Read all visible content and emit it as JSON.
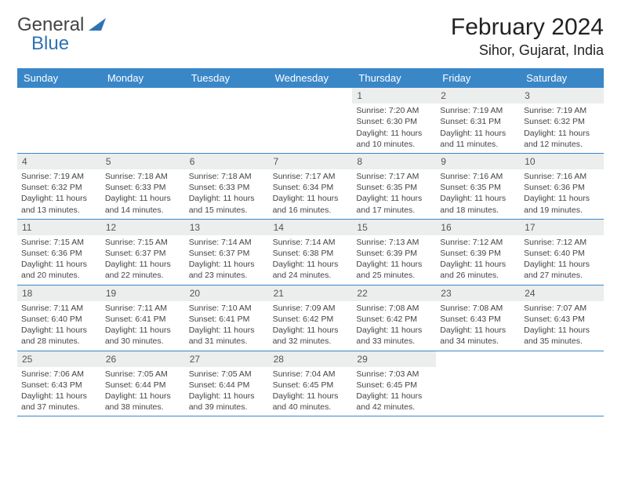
{
  "logo": {
    "text1": "General",
    "text2": "Blue",
    "color1": "#5a5a5a",
    "color2": "#2f72b3",
    "triangle_color": "#2f72b3"
  },
  "title": "February 2024",
  "location": "Sihor, Gujarat, India",
  "colors": {
    "header_bg": "#3a87c8",
    "header_text": "#ffffff",
    "daynum_bg": "#eceded",
    "daynum_text": "#555555",
    "cell_text": "#444444",
    "rule": "#3a87c8"
  },
  "day_names": [
    "Sunday",
    "Monday",
    "Tuesday",
    "Wednesday",
    "Thursday",
    "Friday",
    "Saturday"
  ],
  "weeks": [
    [
      {
        "n": "",
        "sr": "",
        "ss": "",
        "dl": ""
      },
      {
        "n": "",
        "sr": "",
        "ss": "",
        "dl": ""
      },
      {
        "n": "",
        "sr": "",
        "ss": "",
        "dl": ""
      },
      {
        "n": "",
        "sr": "",
        "ss": "",
        "dl": ""
      },
      {
        "n": "1",
        "sr": "Sunrise: 7:20 AM",
        "ss": "Sunset: 6:30 PM",
        "dl": "Daylight: 11 hours and 10 minutes."
      },
      {
        "n": "2",
        "sr": "Sunrise: 7:19 AM",
        "ss": "Sunset: 6:31 PM",
        "dl": "Daylight: 11 hours and 11 minutes."
      },
      {
        "n": "3",
        "sr": "Sunrise: 7:19 AM",
        "ss": "Sunset: 6:32 PM",
        "dl": "Daylight: 11 hours and 12 minutes."
      }
    ],
    [
      {
        "n": "4",
        "sr": "Sunrise: 7:19 AM",
        "ss": "Sunset: 6:32 PM",
        "dl": "Daylight: 11 hours and 13 minutes."
      },
      {
        "n": "5",
        "sr": "Sunrise: 7:18 AM",
        "ss": "Sunset: 6:33 PM",
        "dl": "Daylight: 11 hours and 14 minutes."
      },
      {
        "n": "6",
        "sr": "Sunrise: 7:18 AM",
        "ss": "Sunset: 6:33 PM",
        "dl": "Daylight: 11 hours and 15 minutes."
      },
      {
        "n": "7",
        "sr": "Sunrise: 7:17 AM",
        "ss": "Sunset: 6:34 PM",
        "dl": "Daylight: 11 hours and 16 minutes."
      },
      {
        "n": "8",
        "sr": "Sunrise: 7:17 AM",
        "ss": "Sunset: 6:35 PM",
        "dl": "Daylight: 11 hours and 17 minutes."
      },
      {
        "n": "9",
        "sr": "Sunrise: 7:16 AM",
        "ss": "Sunset: 6:35 PM",
        "dl": "Daylight: 11 hours and 18 minutes."
      },
      {
        "n": "10",
        "sr": "Sunrise: 7:16 AM",
        "ss": "Sunset: 6:36 PM",
        "dl": "Daylight: 11 hours and 19 minutes."
      }
    ],
    [
      {
        "n": "11",
        "sr": "Sunrise: 7:15 AM",
        "ss": "Sunset: 6:36 PM",
        "dl": "Daylight: 11 hours and 20 minutes."
      },
      {
        "n": "12",
        "sr": "Sunrise: 7:15 AM",
        "ss": "Sunset: 6:37 PM",
        "dl": "Daylight: 11 hours and 22 minutes."
      },
      {
        "n": "13",
        "sr": "Sunrise: 7:14 AM",
        "ss": "Sunset: 6:37 PM",
        "dl": "Daylight: 11 hours and 23 minutes."
      },
      {
        "n": "14",
        "sr": "Sunrise: 7:14 AM",
        "ss": "Sunset: 6:38 PM",
        "dl": "Daylight: 11 hours and 24 minutes."
      },
      {
        "n": "15",
        "sr": "Sunrise: 7:13 AM",
        "ss": "Sunset: 6:39 PM",
        "dl": "Daylight: 11 hours and 25 minutes."
      },
      {
        "n": "16",
        "sr": "Sunrise: 7:12 AM",
        "ss": "Sunset: 6:39 PM",
        "dl": "Daylight: 11 hours and 26 minutes."
      },
      {
        "n": "17",
        "sr": "Sunrise: 7:12 AM",
        "ss": "Sunset: 6:40 PM",
        "dl": "Daylight: 11 hours and 27 minutes."
      }
    ],
    [
      {
        "n": "18",
        "sr": "Sunrise: 7:11 AM",
        "ss": "Sunset: 6:40 PM",
        "dl": "Daylight: 11 hours and 28 minutes."
      },
      {
        "n": "19",
        "sr": "Sunrise: 7:11 AM",
        "ss": "Sunset: 6:41 PM",
        "dl": "Daylight: 11 hours and 30 minutes."
      },
      {
        "n": "20",
        "sr": "Sunrise: 7:10 AM",
        "ss": "Sunset: 6:41 PM",
        "dl": "Daylight: 11 hours and 31 minutes."
      },
      {
        "n": "21",
        "sr": "Sunrise: 7:09 AM",
        "ss": "Sunset: 6:42 PM",
        "dl": "Daylight: 11 hours and 32 minutes."
      },
      {
        "n": "22",
        "sr": "Sunrise: 7:08 AM",
        "ss": "Sunset: 6:42 PM",
        "dl": "Daylight: 11 hours and 33 minutes."
      },
      {
        "n": "23",
        "sr": "Sunrise: 7:08 AM",
        "ss": "Sunset: 6:43 PM",
        "dl": "Daylight: 11 hours and 34 minutes."
      },
      {
        "n": "24",
        "sr": "Sunrise: 7:07 AM",
        "ss": "Sunset: 6:43 PM",
        "dl": "Daylight: 11 hours and 35 minutes."
      }
    ],
    [
      {
        "n": "25",
        "sr": "Sunrise: 7:06 AM",
        "ss": "Sunset: 6:43 PM",
        "dl": "Daylight: 11 hours and 37 minutes."
      },
      {
        "n": "26",
        "sr": "Sunrise: 7:05 AM",
        "ss": "Sunset: 6:44 PM",
        "dl": "Daylight: 11 hours and 38 minutes."
      },
      {
        "n": "27",
        "sr": "Sunrise: 7:05 AM",
        "ss": "Sunset: 6:44 PM",
        "dl": "Daylight: 11 hours and 39 minutes."
      },
      {
        "n": "28",
        "sr": "Sunrise: 7:04 AM",
        "ss": "Sunset: 6:45 PM",
        "dl": "Daylight: 11 hours and 40 minutes."
      },
      {
        "n": "29",
        "sr": "Sunrise: 7:03 AM",
        "ss": "Sunset: 6:45 PM",
        "dl": "Daylight: 11 hours and 42 minutes."
      },
      {
        "n": "",
        "sr": "",
        "ss": "",
        "dl": ""
      },
      {
        "n": "",
        "sr": "",
        "ss": "",
        "dl": ""
      }
    ]
  ]
}
